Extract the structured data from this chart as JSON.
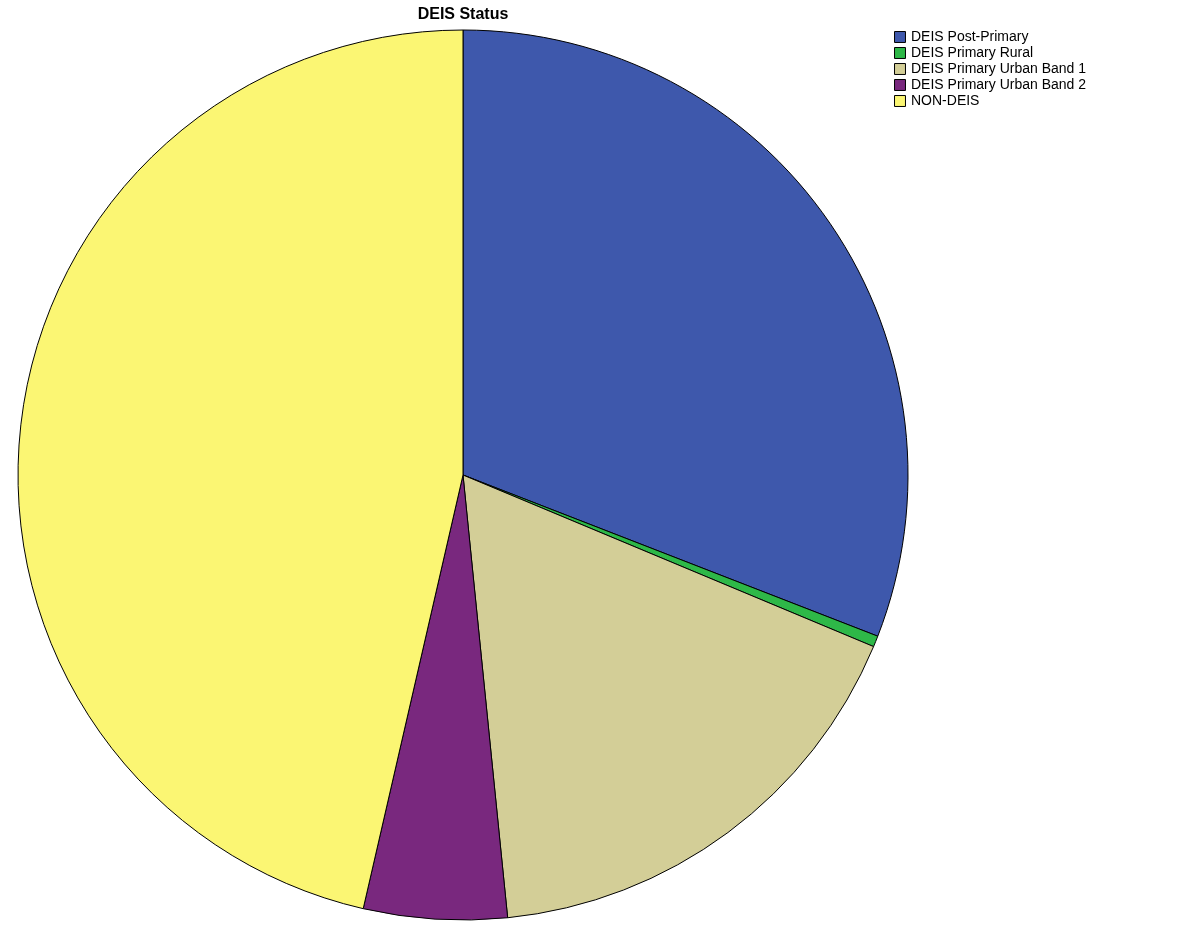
{
  "chart_data": {
    "type": "pie",
    "title": "DEIS Status",
    "categories": [
      "DEIS Post-Primary",
      "DEIS Primary Rural",
      "DEIS Primary Urban Band 1",
      "DEIS Primary Urban Band 2",
      "NON-DEIS"
    ],
    "values": [
      30.9,
      0.4,
      17.1,
      5.2,
      46.4
    ],
    "colors": [
      "#3e58ac",
      "#2eb848",
      "#d3ce97",
      "#79287e",
      "#fbf673"
    ],
    "legend": "top right"
  }
}
